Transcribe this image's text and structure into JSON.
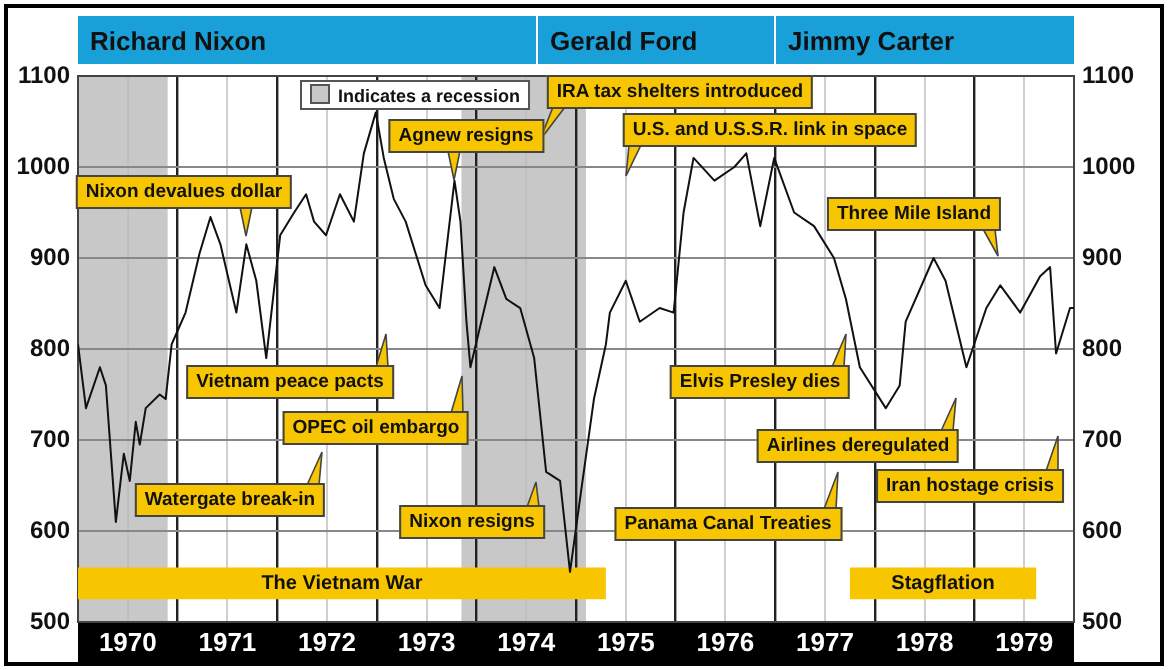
{
  "chart_data": {
    "type": "line",
    "grid": true,
    "marker": "none",
    "xlim": [
      1970,
      1980
    ],
    "xticks": [
      {
        "value": 1970.5,
        "label": "1970"
      },
      {
        "value": 1971,
        "label": null
      },
      {
        "value": 1971.5,
        "label": "1971"
      },
      {
        "value": 1972,
        "label": null
      },
      {
        "value": 1972.5,
        "label": "1972"
      },
      {
        "value": 1973,
        "label": null
      },
      {
        "value": 1973.5,
        "label": "1973"
      },
      {
        "value": 1974,
        "label": null
      },
      {
        "value": 1974.5,
        "label": "1974"
      },
      {
        "value": 1975,
        "label": null
      },
      {
        "value": 1975.5,
        "label": "1975"
      },
      {
        "value": 1976,
        "label": null
      },
      {
        "value": 1976.5,
        "label": "1976"
      },
      {
        "value": 1977,
        "label": null
      },
      {
        "value": 1977.5,
        "label": "1977"
      },
      {
        "value": 1978,
        "label": null
      },
      {
        "value": 1978.5,
        "label": "1978"
      },
      {
        "value": 1979,
        "label": null
      },
      {
        "value": 1979.5,
        "label": "1979"
      }
    ],
    "ylim": [
      500,
      1100
    ],
    "yticks": [
      500,
      600,
      700,
      800,
      900,
      1000,
      1100
    ],
    "y2lim": [
      500,
      1100
    ],
    "y2ticks": [
      500,
      600,
      700,
      800,
      900,
      1000,
      1100
    ],
    "series": [
      {
        "color": "#111111",
        "x": [
          1970.0,
          1970.08,
          1970.22,
          1970.28,
          1970.38,
          1970.46,
          1970.52,
          1970.58,
          1970.62,
          1970.68,
          1970.82,
          1970.88,
          1970.94,
          1971.02,
          1971.08,
          1971.22,
          1971.33,
          1971.43,
          1971.59,
          1971.69,
          1971.79,
          1971.89,
          1972.03,
          1972.17,
          1972.29,
          1972.37,
          1972.49,
          1972.63,
          1972.77,
          1972.87,
          1972.99,
          1973.07,
          1973.17,
          1973.29,
          1973.49,
          1973.63,
          1973.78,
          1973.84,
          1973.9,
          1973.94,
          1974.18,
          1974.3,
          1974.44,
          1974.58,
          1974.7,
          1974.84,
          1974.94,
          1975.04,
          1975.18,
          1975.3,
          1975.34,
          1975.5,
          1975.64,
          1975.84,
          1975.98,
          1976.08,
          1976.18,
          1976.39,
          1976.59,
          1976.71,
          1976.85,
          1976.99,
          1977.19,
          1977.39,
          1977.59,
          1977.71,
          1977.85,
          1978.11,
          1978.25,
          1978.31,
          1978.59,
          1978.71,
          1978.92,
          1979.12,
          1979.26,
          1979.46,
          1979.66,
          1979.76,
          1979.82,
          1979.96,
          1980.0
        ],
        "values": [
          805,
          735,
          780,
          760,
          610,
          685,
          655,
          720,
          695,
          735,
          750,
          745,
          805,
          825,
          840,
          905,
          945,
          915,
          840,
          915,
          875,
          790,
          925,
          950,
          970,
          940,
          925,
          970,
          940,
          1015,
          1060,
          1010,
          965,
          940,
          870,
          845,
          985,
          940,
          830,
          780,
          890,
          855,
          845,
          790,
          665,
          655,
          555,
          635,
          745,
          805,
          840,
          875,
          830,
          845,
          840,
          950,
          1010,
          985,
          1000,
          1015,
          935,
          1010,
          950,
          935,
          900,
          855,
          780,
          735,
          760,
          830,
          900,
          875,
          780,
          845,
          870,
          840,
          880,
          890,
          795,
          845,
          845
        ]
      }
    ],
    "bands": [
      {
        "axis": "x",
        "from": 1970,
        "to": 1970.9,
        "color": "#c8c8c8"
      },
      {
        "axis": "x",
        "from": 1973.85,
        "to": 1975.1,
        "color": "#c8c8c8"
      },
      {
        "axis": "x",
        "from": 1970,
        "to": 1975.3,
        "label": "The Vietnam War",
        "color": "#f7c600"
      },
      {
        "axis": "x",
        "from": 1977.75,
        "to": 1979.62,
        "label": "Stagflation",
        "color": "#f7c600"
      }
    ],
    "annotations": [
      "Indicates a recession",
      "Richard Nixon",
      "Gerald Ford",
      "Jimmy Carter",
      "Nixon devalues dollar",
      "Agnew resigns",
      "IRA tax shelters introduced",
      "U.S. and U.S.S.R. link in space",
      "Three Mile Island",
      "Vietnam peace pacts",
      "OPEC oil embargo",
      "Watergate break-in",
      "Nixon resigns",
      "Elvis Presley dies",
      "Airlines deregulated",
      "Iran hostage crisis",
      "Panama Canal Treaties"
    ]
  }
}
